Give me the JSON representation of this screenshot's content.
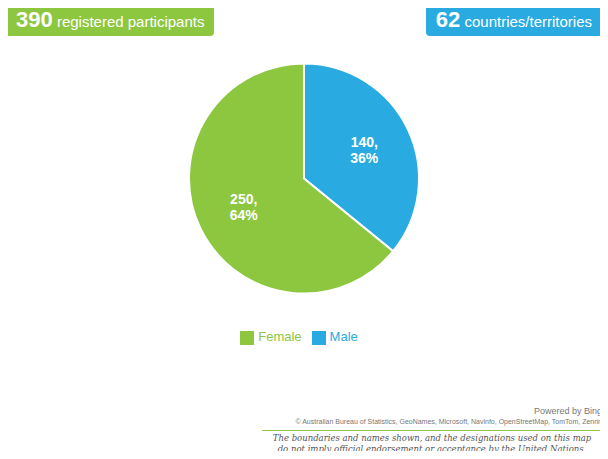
{
  "chart_data": {
    "type": "pie",
    "title": "390 registered participants",
    "subtitle": "62 countries/territories",
    "categories": [
      "Male",
      "Female"
    ],
    "values": [
      140,
      250
    ],
    "value_labels": [
      "140,\n36%",
      "250,\n64%"
    ],
    "colors": [
      "#29ABE2",
      "#8DC63F"
    ],
    "data_labels": true,
    "legend": "bottom",
    "annotations": [
      "Powered by Bing",
      "© Australian Bureau of Statistics, GeoNames, Microsoft, Navinfo, OpenStreetMap, TomTom, Zenrin",
      "The boundaries and names shown, and the designations used on this map",
      "do not imply official endorsement or acceptance by the United Nations."
    ]
  }
}
